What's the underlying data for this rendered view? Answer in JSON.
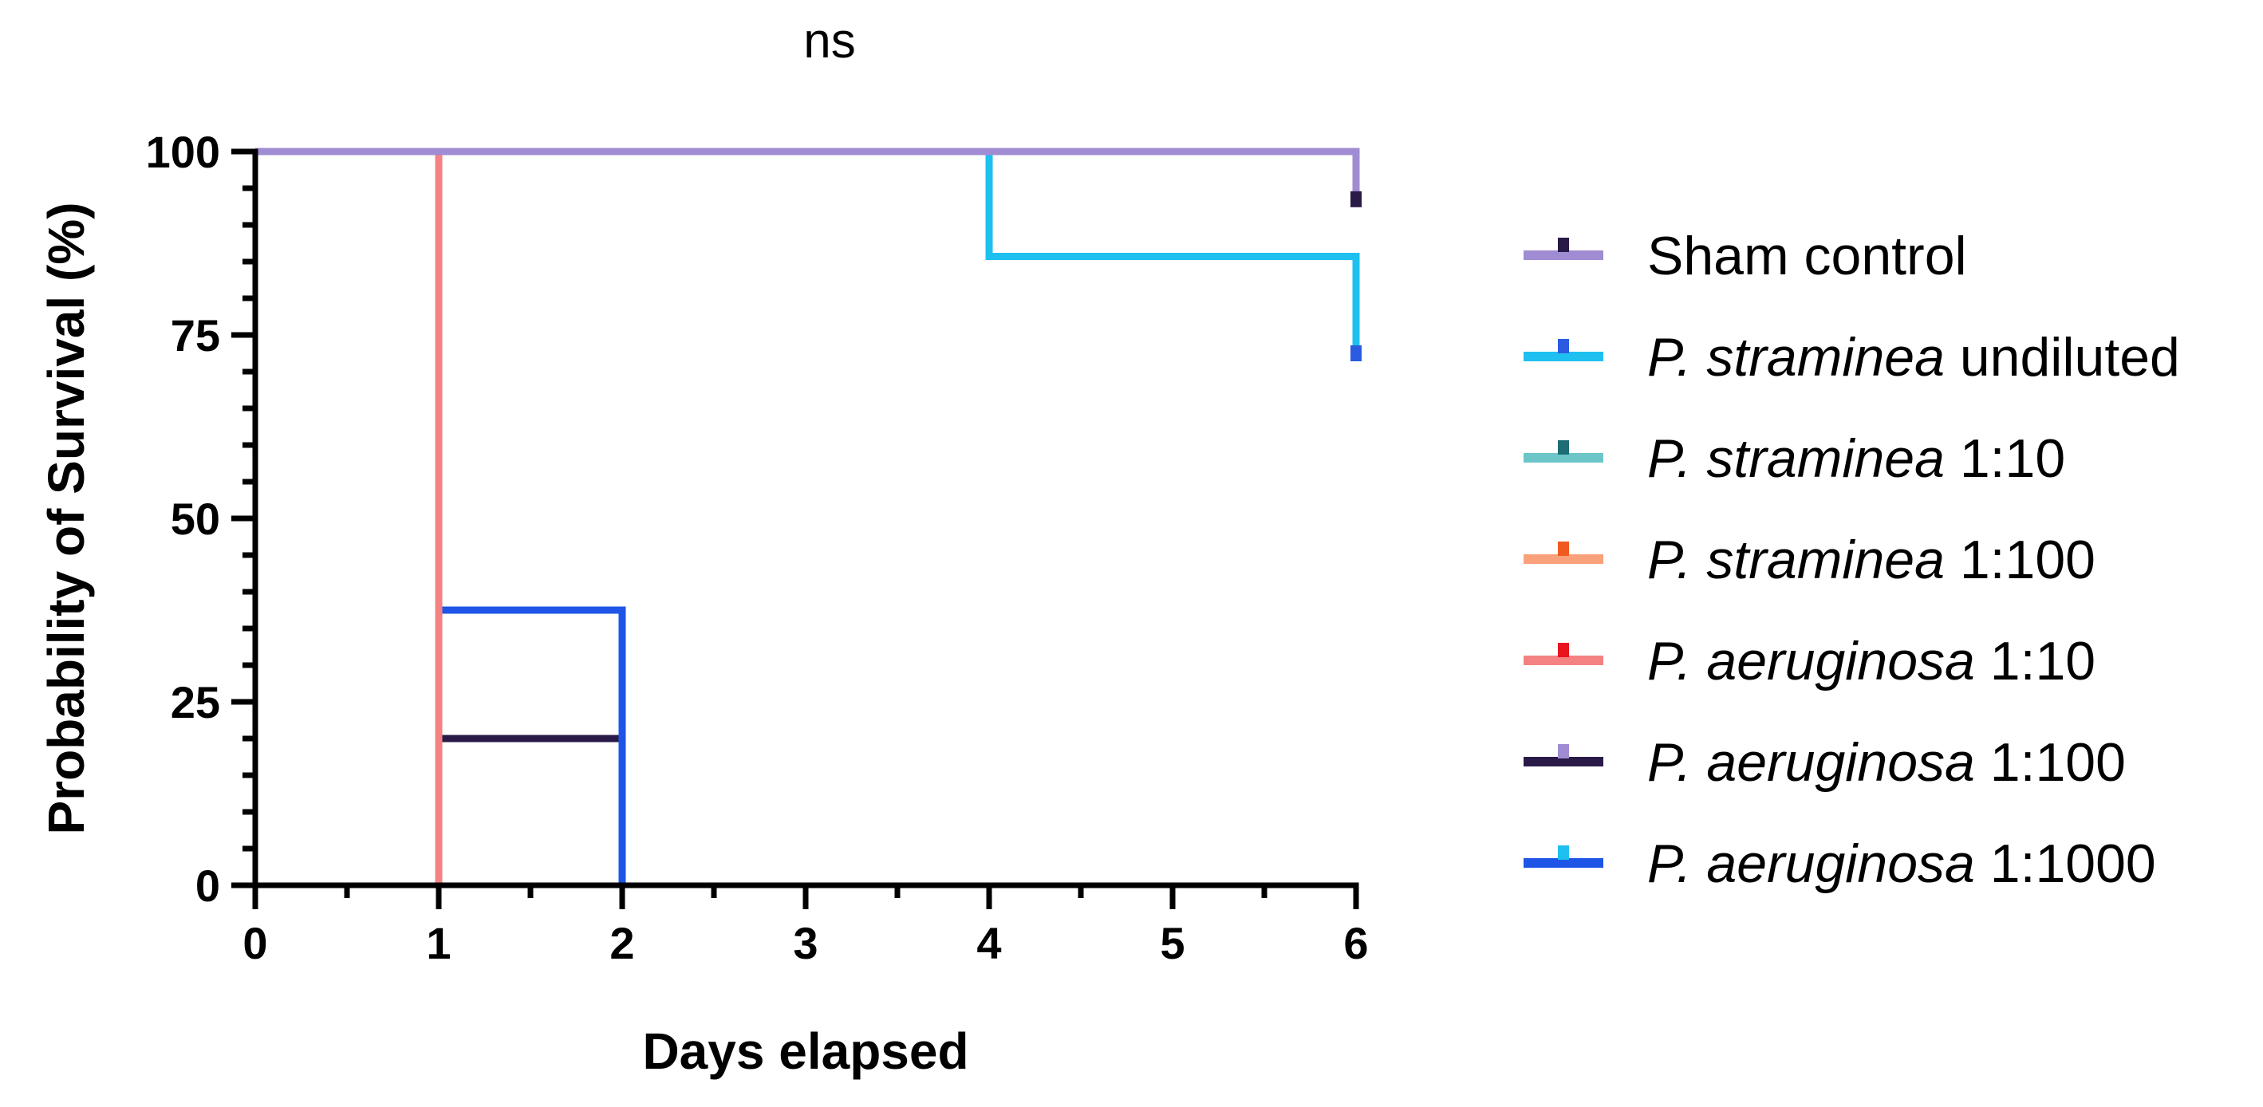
{
  "chart_data": {
    "type": "line",
    "subtype": "kaplan-meier step",
    "title": "ns",
    "xlabel": "Days elapsed",
    "ylabel": "Probability of Survival (%)",
    "xlim": [
      0,
      6
    ],
    "ylim": [
      0,
      100
    ],
    "x_ticks": [
      "0",
      "1",
      "2",
      "3",
      "4",
      "5",
      "6"
    ],
    "y_ticks": [
      "0",
      "25",
      "50",
      "75",
      "100"
    ],
    "legend_position": "right",
    "series": [
      {
        "name": "Sham control",
        "name_italic": "",
        "name_rest": "Sham control",
        "color": "#A08CD2",
        "marker_color": "#2A1A48",
        "x": [
          0,
          6,
          6
        ],
        "y": [
          100,
          100,
          93.5
        ],
        "censor": [
          [
            6,
            93.5
          ]
        ]
      },
      {
        "name": "P. straminea undiluted",
        "name_italic": "P. straminea",
        "name_rest": " undiluted",
        "color": "#1EC0F0",
        "marker_color": "#2A5BE0",
        "x": [
          0,
          4,
          4,
          6,
          6
        ],
        "y": [
          100,
          100,
          85.7,
          85.7,
          72.5
        ],
        "censor": [
          [
            6,
            72.5
          ]
        ]
      },
      {
        "name": "P. straminea 1:10",
        "name_italic": "P. straminea",
        "name_rest": " 1:10",
        "color": "#6CC6C8",
        "marker_color": "#1E6C74",
        "x": [
          0,
          6
        ],
        "y": [
          100,
          100
        ],
        "censor": []
      },
      {
        "name": "P. straminea 1:100",
        "name_italic": "P. straminea",
        "name_rest": " 1:100",
        "color": "#FAA07A",
        "marker_color": "#F05A1E",
        "x": [
          0,
          6
        ],
        "y": [
          100,
          100
        ],
        "censor": []
      },
      {
        "name": "P. aeruginosa 1:10",
        "name_italic": "P. aeruginosa",
        "name_rest": " 1:10",
        "color": "#F58282",
        "marker_color": "#E8141E",
        "x": [
          0,
          1,
          1
        ],
        "y": [
          100,
          100,
          0
        ],
        "censor": []
      },
      {
        "name": "P. aeruginosa 1:100",
        "name_italic": "P. aeruginosa",
        "name_rest": " 1:100",
        "color": "#2A1A48",
        "marker_color": "#A08CD2",
        "x": [
          0,
          1,
          1,
          2,
          2
        ],
        "y": [
          100,
          100,
          20,
          20,
          0
        ],
        "censor": []
      },
      {
        "name": "P. aeruginosa 1:1000",
        "name_italic": "P. aeruginosa",
        "name_rest": " 1:1000",
        "color": "#1E55E6",
        "marker_color": "#1EC0F0",
        "x": [
          0,
          1,
          1,
          2,
          2
        ],
        "y": [
          100,
          100,
          37.5,
          37.5,
          0
        ],
        "censor": []
      }
    ],
    "draw_order": [
      5,
      6,
      4,
      1,
      2,
      3,
      0
    ]
  }
}
